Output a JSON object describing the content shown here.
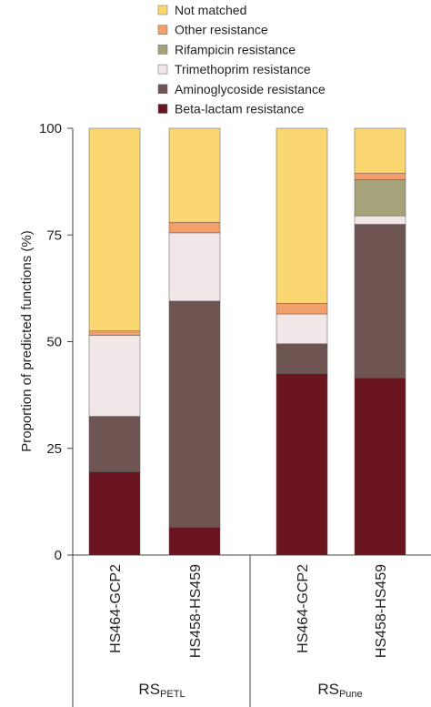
{
  "chart_data": {
    "type": "bar",
    "stacked": true,
    "ylabel": "Proportion of predicted functions (%)",
    "ylim": [
      0,
      100
    ],
    "yticks": [
      0,
      25,
      50,
      75,
      100
    ],
    "categories": [
      "HS464-GCP2",
      "HS458-HS459",
      "HS464-GCP2",
      "HS458-HS459"
    ],
    "groups": [
      {
        "label": "RS",
        "sub": "PETL",
        "categories": [
          0,
          1
        ]
      },
      {
        "label": "RS",
        "sub": "Pune",
        "categories": [
          2,
          3
        ]
      }
    ],
    "legend_position": "top",
    "series": [
      {
        "name": "Beta-lactam resistance",
        "color": "#6b1520",
        "values": [
          19.5,
          6.5,
          42.5,
          41.5
        ]
      },
      {
        "name": "Aminoglycoside resistance",
        "color": "#6e5552",
        "values": [
          13.0,
          53.0,
          7.0,
          36.0
        ]
      },
      {
        "name": "Trimethoprim resistance",
        "color": "#f1e6e8",
        "values": [
          19.0,
          16.0,
          7.0,
          2.0
        ]
      },
      {
        "name": "Rifampicin resistance",
        "color": "#a6a27a",
        "values": [
          0.0,
          0.0,
          0.0,
          8.5
        ]
      },
      {
        "name": "Other resistance",
        "color": "#f2a06b",
        "values": [
          1.0,
          2.5,
          2.5,
          1.5
        ]
      },
      {
        "name": "Not matched",
        "color": "#fbd772",
        "values": [
          47.5,
          22.0,
          41.0,
          10.5
        ]
      }
    ]
  }
}
